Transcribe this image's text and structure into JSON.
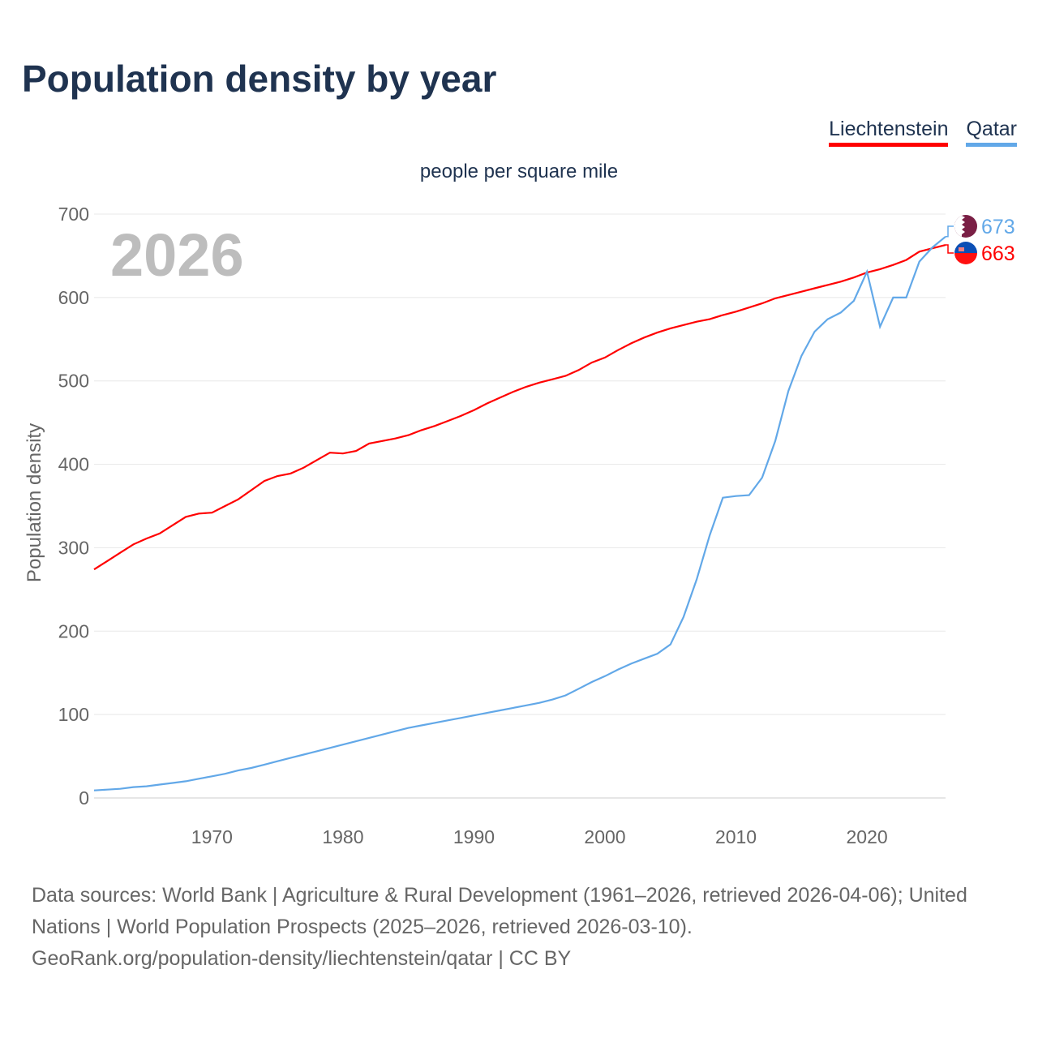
{
  "title": "Population density by year",
  "chart_data": {
    "type": "line",
    "title": "Population density by year",
    "subtitle": "people per square mile",
    "ylabel": "Population density",
    "xlabel": "",
    "current_year_label": "2026",
    "xlim": [
      1961,
      2026
    ],
    "ylim": [
      0,
      700
    ],
    "x_ticks": [
      1970,
      1980,
      1990,
      2000,
      2010,
      2020
    ],
    "y_ticks": [
      0,
      100,
      200,
      300,
      400,
      500,
      600,
      700
    ],
    "grid": true,
    "legend_position": "top-right",
    "x": [
      1961,
      1962,
      1963,
      1964,
      1965,
      1966,
      1967,
      1968,
      1969,
      1970,
      1971,
      1972,
      1973,
      1974,
      1975,
      1976,
      1977,
      1978,
      1979,
      1980,
      1981,
      1982,
      1983,
      1984,
      1985,
      1986,
      1987,
      1988,
      1989,
      1990,
      1991,
      1992,
      1993,
      1994,
      1995,
      1996,
      1997,
      1998,
      1999,
      2000,
      2001,
      2002,
      2003,
      2004,
      2005,
      2006,
      2007,
      2008,
      2009,
      2010,
      2011,
      2012,
      2013,
      2014,
      2015,
      2016,
      2017,
      2018,
      2019,
      2020,
      2021,
      2022,
      2023,
      2024,
      2025,
      2026
    ],
    "series": [
      {
        "name": "Liechtenstein",
        "color": "#ff0000",
        "end_label": "663",
        "values": [
          274,
          284,
          294,
          304,
          311,
          317,
          327,
          337,
          341,
          342,
          350,
          358,
          369,
          380,
          386,
          389,
          396,
          405,
          414,
          413,
          416,
          425,
          428,
          431,
          435,
          441,
          446,
          452,
          458,
          465,
          473,
          480,
          487,
          493,
          498,
          502,
          506,
          513,
          522,
          528,
          537,
          545,
          552,
          558,
          563,
          567,
          571,
          574,
          579,
          583,
          588,
          593,
          599,
          603,
          607,
          611,
          615,
          619,
          624,
          630,
          634,
          639,
          645,
          655,
          659,
          663
        ]
      },
      {
        "name": "Qatar",
        "color": "#62a8e8",
        "end_label": "673",
        "values": [
          9,
          10,
          11,
          13,
          14,
          16,
          18,
          20,
          23,
          26,
          29,
          33,
          36,
          40,
          44,
          48,
          52,
          56,
          60,
          64,
          68,
          72,
          76,
          80,
          84,
          87,
          90,
          93,
          96,
          99,
          102,
          105,
          108,
          111,
          114,
          118,
          123,
          131,
          139,
          146,
          154,
          161,
          167,
          173,
          184,
          217,
          262,
          315,
          360,
          362,
          363,
          384,
          428,
          488,
          530,
          559,
          574,
          582,
          596,
          631,
          565,
          600,
          600,
          643,
          660,
          673
        ]
      }
    ]
  },
  "source": {
    "line1": "Data sources: World Bank | Agriculture & Rural Development (1961–2026, retrieved 2026-04-06); United Nations | World Population Prospects (2025–2026, retrieved 2026-03-10).",
    "line2": "GeoRank.org/population-density/liechtenstein/qatar | CC BY"
  }
}
